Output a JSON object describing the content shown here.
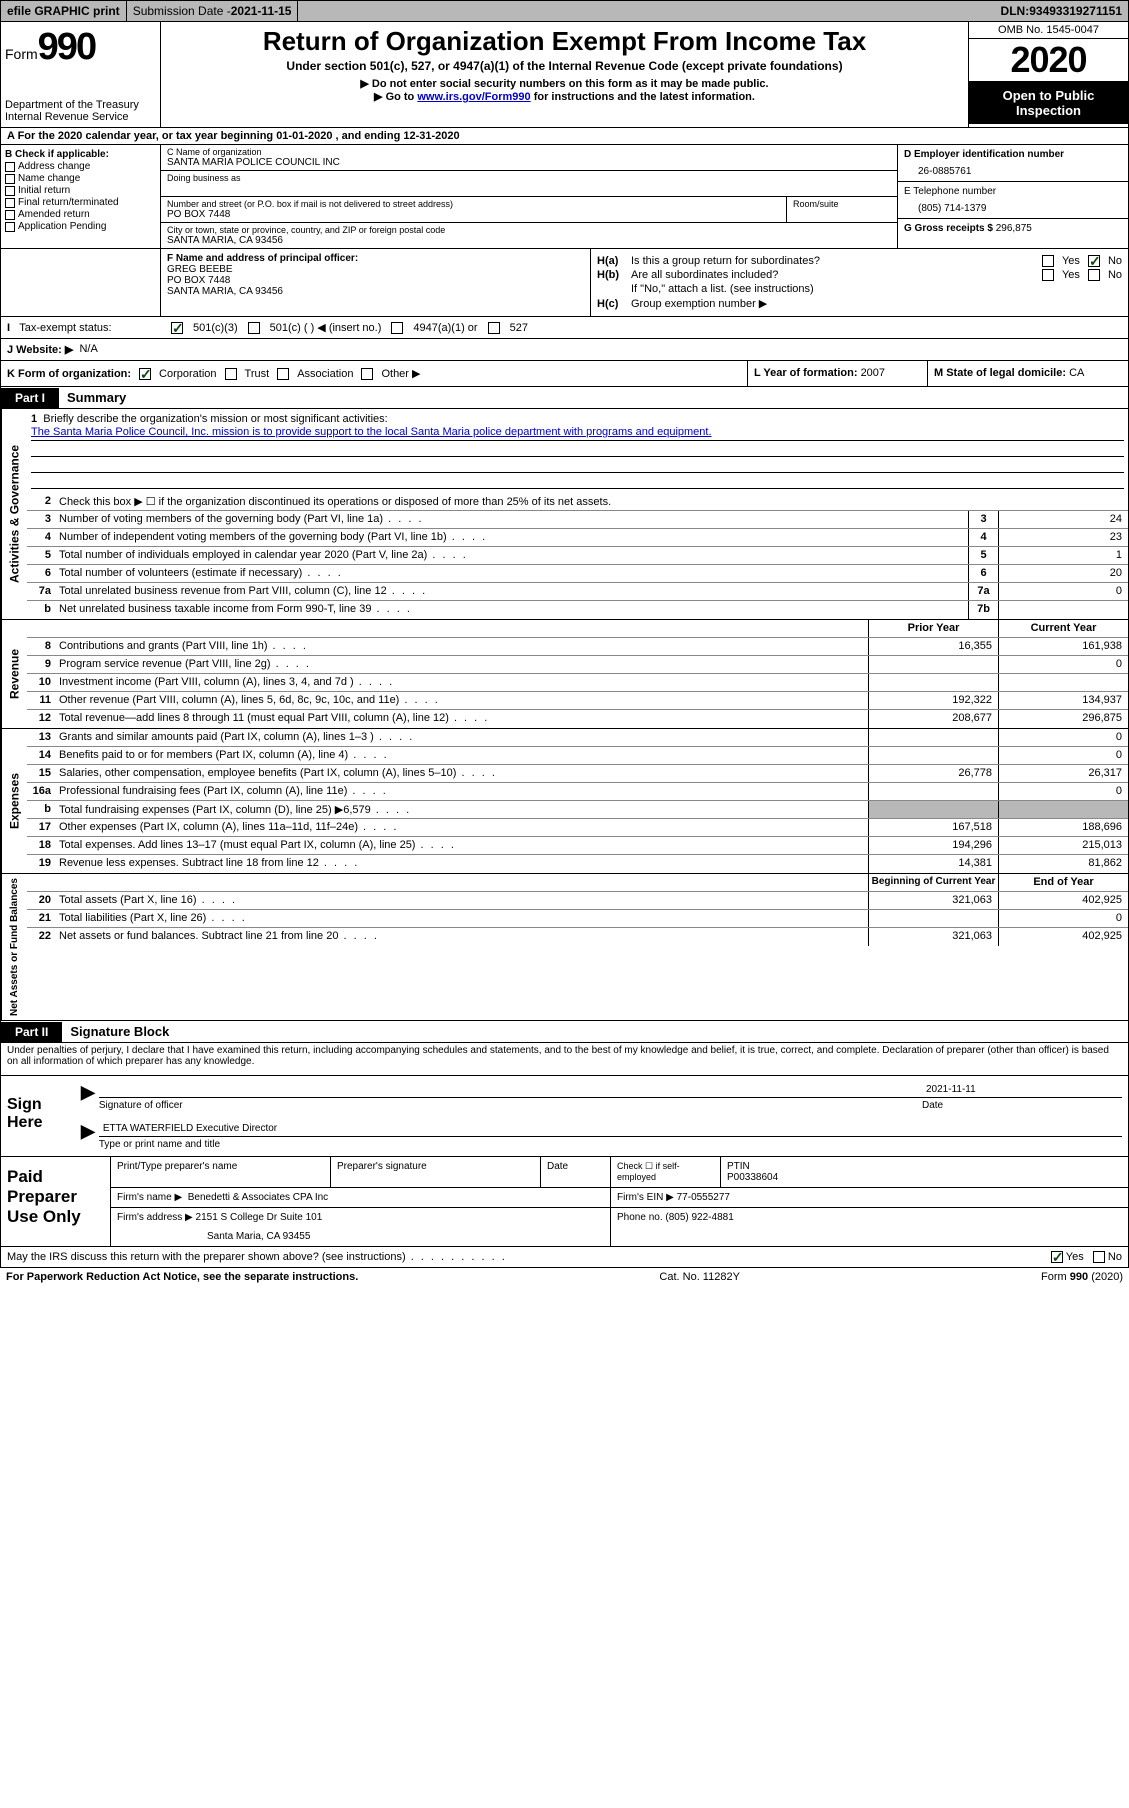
{
  "topbar": {
    "efile": "efile GRAPHIC print",
    "sub_label": "Submission Date - ",
    "sub_date": "2021-11-15",
    "dln_label": "DLN: ",
    "dln": "93493319271151"
  },
  "header": {
    "form_word": "Form",
    "form_num": "990",
    "dept1": "Department of the Treasury",
    "dept2": "Internal Revenue Service",
    "title": "Return of Organization Exempt From Income Tax",
    "sub": "Under section 501(c), 527, or 4947(a)(1) of the Internal Revenue Code (except private foundations)",
    "note1": "▶ Do not enter social security numbers on this form as it may be made public.",
    "note2_pre": "▶ Go to ",
    "note2_link": "www.irs.gov/Form990",
    "note2_post": " for instructions and the latest information.",
    "omb": "OMB No. 1545-0047",
    "year": "2020",
    "inspect": "Open to Public Inspection"
  },
  "rowA": "A   For the 2020 calendar year, or tax year beginning 01-01-2020   , and ending 12-31-2020",
  "colB": {
    "label": "B Check if applicable:",
    "opts": [
      "Address change",
      "Name change",
      "Initial return",
      "Final return/terminated",
      "Amended return",
      "Application Pending"
    ]
  },
  "colC": {
    "name_lbl": "C Name of organization",
    "name": "SANTA MARIA POLICE COUNCIL INC",
    "dba_lbl": "Doing business as",
    "addr_lbl": "Number and street (or P.O. box if mail is not delivered to street address)",
    "suite_lbl": "Room/suite",
    "addr": "PO BOX 7448",
    "city_lbl": "City or town, state or province, country, and ZIP or foreign postal code",
    "city": "SANTA MARIA, CA  93456"
  },
  "colD": {
    "ein_lbl": "D Employer identification number",
    "ein": "26-0885761",
    "tel_lbl": "E Telephone number",
    "tel": "(805) 714-1379",
    "gross_lbl": "G Gross receipts $ ",
    "gross": "296,875"
  },
  "colF": {
    "lbl": "F  Name and address of principal officer:",
    "name": "GREG BEEBE",
    "addr1": "PO BOX 7448",
    "addr2": "SANTA MARIA, CA  93456"
  },
  "colH": {
    "a": "Is this a group return for subordinates?",
    "b": "Are all subordinates included?",
    "note": "If \"No,\" attach a list. (see instructions)",
    "c": "Group exemption number ▶"
  },
  "taxRow": {
    "lbl": "Tax-exempt status:",
    "o1": "501(c)(3)",
    "o2": "501(c) (  ) ◀ (insert no.)",
    "o3": "4947(a)(1) or",
    "o4": "527"
  },
  "webRow": {
    "lbl": "J   Website: ▶",
    "val": "N/A"
  },
  "kRow": {
    "lbl": "K Form of organization:",
    "opts": [
      "Corporation",
      "Trust",
      "Association",
      "Other ▶"
    ],
    "L": "L Year of formation: ",
    "Lval": "2007",
    "M": "M State of legal domicile: ",
    "Mval": "CA"
  },
  "part1": {
    "tab": "Part I",
    "title": "Summary"
  },
  "sections": {
    "gov": {
      "label": "Activities & Governance",
      "l1_lbl": "Briefly describe the organization's mission or most significant activities:",
      "l1_text": "The Santa Maria Police Council, Inc. mission is to provide support to the local Santa Maria police department with programs and equipment.",
      "l2": "Check this box ▶ ☐  if the organization discontinued its operations or disposed of more than 25% of its net assets.",
      "lines": [
        {
          "n": "3",
          "d": "Number of voting members of the governing body (Part VI, line 1a)",
          "b": "3",
          "v": "24"
        },
        {
          "n": "4",
          "d": "Number of independent voting members of the governing body (Part VI, line 1b)",
          "b": "4",
          "v": "23"
        },
        {
          "n": "5",
          "d": "Total number of individuals employed in calendar year 2020 (Part V, line 2a)",
          "b": "5",
          "v": "1"
        },
        {
          "n": "6",
          "d": "Total number of volunteers (estimate if necessary)",
          "b": "6",
          "v": "20"
        },
        {
          "n": "7a",
          "d": "Total unrelated business revenue from Part VIII, column (C), line 12",
          "b": "7a",
          "v": "0"
        },
        {
          "n": "b",
          "d": "Net unrelated business taxable income from Form 990-T, line 39",
          "b": "7b",
          "v": ""
        }
      ]
    },
    "rev": {
      "label": "Revenue",
      "hdr_prior": "Prior Year",
      "hdr_curr": "Current Year",
      "lines": [
        {
          "n": "8",
          "d": "Contributions and grants (Part VIII, line 1h)",
          "p": "16,355",
          "c": "161,938"
        },
        {
          "n": "9",
          "d": "Program service revenue (Part VIII, line 2g)",
          "p": "",
          "c": "0"
        },
        {
          "n": "10",
          "d": "Investment income (Part VIII, column (A), lines 3, 4, and 7d )",
          "p": "",
          "c": ""
        },
        {
          "n": "11",
          "d": "Other revenue (Part VIII, column (A), lines 5, 6d, 8c, 9c, 10c, and 11e)",
          "p": "192,322",
          "c": "134,937"
        },
        {
          "n": "12",
          "d": "Total revenue—add lines 8 through 11 (must equal Part VIII, column (A), line 12)",
          "p": "208,677",
          "c": "296,875"
        }
      ]
    },
    "exp": {
      "label": "Expenses",
      "lines": [
        {
          "n": "13",
          "d": "Grants and similar amounts paid (Part IX, column (A), lines 1–3 )",
          "p": "",
          "c": "0"
        },
        {
          "n": "14",
          "d": "Benefits paid to or for members (Part IX, column (A), line 4)",
          "p": "",
          "c": "0"
        },
        {
          "n": "15",
          "d": "Salaries, other compensation, employee benefits (Part IX, column (A), lines 5–10)",
          "p": "26,778",
          "c": "26,317"
        },
        {
          "n": "16a",
          "d": "Professional fundraising fees (Part IX, column (A), line 11e)",
          "p": "",
          "c": "0"
        },
        {
          "n": "b",
          "d": "Total fundraising expenses (Part IX, column (D), line 25) ▶6,579",
          "p": "GRAY",
          "c": "GRAY"
        },
        {
          "n": "17",
          "d": "Other expenses (Part IX, column (A), lines 11a–11d, 11f–24e)",
          "p": "167,518",
          "c": "188,696"
        },
        {
          "n": "18",
          "d": "Total expenses. Add lines 13–17 (must equal Part IX, column (A), line 25)",
          "p": "194,296",
          "c": "215,013"
        },
        {
          "n": "19",
          "d": "Revenue less expenses. Subtract line 18 from line 12",
          "p": "14,381",
          "c": "81,862"
        }
      ]
    },
    "net": {
      "label": "Net Assets or Fund Balances",
      "hdr_prior": "Beginning of Current Year",
      "hdr_curr": "End of Year",
      "lines": [
        {
          "n": "20",
          "d": "Total assets (Part X, line 16)",
          "p": "321,063",
          "c": "402,925"
        },
        {
          "n": "21",
          "d": "Total liabilities (Part X, line 26)",
          "p": "",
          "c": "0"
        },
        {
          "n": "22",
          "d": "Net assets or fund balances. Subtract line 21 from line 20",
          "p": "321,063",
          "c": "402,925"
        }
      ]
    }
  },
  "part2": {
    "tab": "Part II",
    "title": "Signature Block"
  },
  "sig": {
    "perjury": "Under penalties of perjury, I declare that I have examined this return, including accompanying schedules and statements, and to the best of my knowledge and belief, it is true, correct, and complete. Declaration of preparer (other than officer) is based on all information of which preparer has any knowledge.",
    "sign_here": "Sign Here",
    "sig_officer": "Signature of officer",
    "date_lbl": "Date",
    "date": "2021-11-11",
    "name": "ETTA WATERFIELD  Executive Director",
    "type_lbl": "Type or print name and title"
  },
  "paid": {
    "lbl": "Paid Preparer Use Only",
    "h1": "Print/Type preparer's name",
    "h2": "Preparer's signature",
    "h3": "Date",
    "h4a": "Check ☐ if self-employed",
    "h4b": "PTIN",
    "ptin": "P00338604",
    "firm_lbl": "Firm's name    ▶",
    "firm": "Benedetti & Associates CPA Inc",
    "ein_lbl": "Firm's EIN ▶",
    "ein": "77-0555277",
    "addr_lbl": "Firm's address ▶",
    "addr1": "2151 S College Dr Suite 101",
    "addr2": "Santa Maria, CA  93455",
    "phone_lbl": "Phone no. ",
    "phone": "(805) 922-4881"
  },
  "discuss": "May the IRS discuss this return with the preparer shown above? (see instructions)",
  "footer": {
    "l": "For Paperwork Reduction Act Notice, see the separate instructions.",
    "m": "Cat. No. 11282Y",
    "r": "Form 990 (2020)"
  }
}
